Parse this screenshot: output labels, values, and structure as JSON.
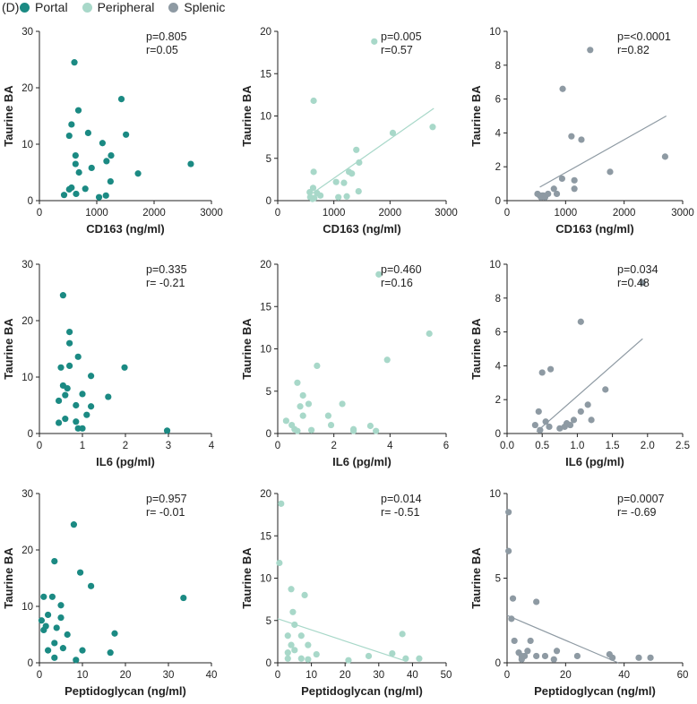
{
  "figure": {
    "panel_label": "(D)"
  },
  "legend": [
    {
      "label": "Portal",
      "color": "#1b8a83"
    },
    {
      "label": "Peripheral",
      "color": "#a8d8c9"
    },
    {
      "label": "Splenic",
      "color": "#8e9aa3"
    }
  ],
  "chart_data": [
    {
      "type": "scatter",
      "series": "Portal",
      "color": "#1b8a83",
      "title": "",
      "xlabel": "CD163 (ng/ml)",
      "ylabel": "Taurine BA",
      "xlim": [
        0,
        3000
      ],
      "ylim": [
        0,
        30
      ],
      "xticks": [
        0,
        1000,
        2000,
        3000
      ],
      "yticks": [
        0,
        10,
        20,
        30
      ],
      "xtick_labels": [
        "0",
        "1000",
        "2000",
        "3000"
      ],
      "ytick_labels": [
        "0",
        "10",
        "20",
        "30"
      ],
      "stats": [
        "p=0.805",
        "r=0.05"
      ],
      "fit": null,
      "points": [
        [
          610,
          24.5
        ],
        [
          1430,
          18
        ],
        [
          680,
          16
        ],
        [
          560,
          13.5
        ],
        [
          850,
          12
        ],
        [
          520,
          11.5
        ],
        [
          1510,
          11.7
        ],
        [
          1100,
          10.2
        ],
        [
          1250,
          8
        ],
        [
          630,
          8
        ],
        [
          1170,
          7
        ],
        [
          630,
          6.5
        ],
        [
          2640,
          6.5
        ],
        [
          910,
          5.8
        ],
        [
          690,
          5
        ],
        [
          1720,
          4.8
        ],
        [
          1240,
          3.4
        ],
        [
          560,
          2.3
        ],
        [
          520,
          2
        ],
        [
          800,
          2.1
        ],
        [
          640,
          1.2
        ],
        [
          1160,
          0.9
        ],
        [
          430,
          1.0
        ],
        [
          1040,
          0.6
        ]
      ]
    },
    {
      "type": "scatter",
      "series": "Peripheral",
      "color": "#a8d8c9",
      "title": "",
      "xlabel": "CD163 (ng/ml)",
      "ylabel": "Taurine BA",
      "xlim": [
        0,
        3000
      ],
      "ylim": [
        0,
        20
      ],
      "xticks": [
        0,
        1000,
        2000,
        3000
      ],
      "yticks": [
        0,
        5,
        10,
        15,
        20
      ],
      "xtick_labels": [
        "0",
        "1000",
        "2000",
        "3000"
      ],
      "ytick_labels": [
        "0",
        "5",
        "10",
        "15",
        "20"
      ],
      "stats": [
        "p=0.005",
        "r=0.57"
      ],
      "fit": {
        "x": [
          560,
          2780
        ],
        "y": [
          0.6,
          10.9
        ]
      },
      "points": [
        [
          1720,
          18.8
        ],
        [
          640,
          11.8
        ],
        [
          2760,
          8.7
        ],
        [
          2050,
          8
        ],
        [
          1400,
          6
        ],
        [
          1450,
          4.5
        ],
        [
          640,
          3.4
        ],
        [
          1270,
          3.4
        ],
        [
          1320,
          3.2
        ],
        [
          1040,
          2.2
        ],
        [
          1180,
          2.1
        ],
        [
          630,
          1.5
        ],
        [
          570,
          1.0
        ],
        [
          700,
          0.9
        ],
        [
          760,
          0.6
        ],
        [
          1440,
          1.1
        ],
        [
          580,
          0.4
        ],
        [
          650,
          0.3
        ],
        [
          1080,
          0.4
        ],
        [
          620,
          0.2
        ],
        [
          1230,
          0.5
        ]
      ]
    },
    {
      "type": "scatter",
      "series": "Splenic",
      "color": "#8e9aa3",
      "title": "",
      "xlabel": "CD163 (ng/ml)",
      "ylabel": "Taurine BA",
      "xlim": [
        0,
        3000
      ],
      "ylim": [
        0,
        10
      ],
      "xticks": [
        0,
        1000,
        2000,
        3000
      ],
      "yticks": [
        0,
        2,
        4,
        6,
        8,
        10
      ],
      "xtick_labels": [
        "0",
        "1000",
        "2000",
        "3000"
      ],
      "ytick_labels": [
        "0",
        "2",
        "4",
        "6",
        "8",
        "10"
      ],
      "stats": [
        "p=<0.0001",
        "r=0.82"
      ],
      "fit": {
        "x": [
          560,
          2720
        ],
        "y": [
          0.8,
          5.0
        ]
      },
      "points": [
        [
          1420,
          8.9
        ],
        [
          950,
          6.6
        ],
        [
          1100,
          3.8
        ],
        [
          1270,
          3.6
        ],
        [
          2700,
          2.6
        ],
        [
          1760,
          1.7
        ],
        [
          1150,
          1.2
        ],
        [
          940,
          1.3
        ],
        [
          520,
          0.4
        ],
        [
          560,
          0.3
        ],
        [
          600,
          0.3
        ],
        [
          620,
          0.3
        ],
        [
          580,
          0.2
        ],
        [
          650,
          0.2
        ],
        [
          700,
          0.4
        ],
        [
          850,
          0.4
        ],
        [
          800,
          0.7
        ],
        [
          1150,
          0.7
        ]
      ]
    },
    {
      "type": "scatter",
      "series": "Portal",
      "color": "#1b8a83",
      "title": "",
      "xlabel": "IL6 (pg/ml)",
      "ylabel": "Taurine BA",
      "xlim": [
        0,
        4
      ],
      "ylim": [
        0,
        30
      ],
      "xticks": [
        0,
        1,
        2,
        3,
        4
      ],
      "yticks": [
        0,
        10,
        20,
        30
      ],
      "xtick_labels": [
        "0",
        "1",
        "2",
        "3",
        "4"
      ],
      "ytick_labels": [
        "0",
        "10",
        "20",
        "30"
      ],
      "stats": [
        "p=0.335",
        "r= -0.21"
      ],
      "fit": null,
      "points": [
        [
          0.55,
          24.5
        ],
        [
          0.7,
          18
        ],
        [
          0.7,
          16
        ],
        [
          0.9,
          13.6
        ],
        [
          0.5,
          11.7
        ],
        [
          0.7,
          12
        ],
        [
          1.98,
          11.7
        ],
        [
          1.2,
          10.2
        ],
        [
          0.55,
          8.5
        ],
        [
          0.65,
          8
        ],
        [
          1.0,
          7
        ],
        [
          0.6,
          6.8
        ],
        [
          1.6,
          6.5
        ],
        [
          0.45,
          5.8
        ],
        [
          0.85,
          5
        ],
        [
          1.2,
          4.8
        ],
        [
          1.1,
          3.3
        ],
        [
          0.6,
          2.6
        ],
        [
          0.45,
          1.9
        ],
        [
          0.85,
          2.1
        ],
        [
          0.9,
          0.9
        ],
        [
          1.0,
          0.9
        ],
        [
          2.97,
          0.5
        ]
      ]
    },
    {
      "type": "scatter",
      "series": "Peripheral",
      "color": "#a8d8c9",
      "title": "",
      "xlabel": "IL6 (pg/ml)",
      "ylabel": "Taurine BA",
      "xlim": [
        0,
        6
      ],
      "ylim": [
        0,
        20
      ],
      "xticks": [
        0,
        2,
        4,
        6
      ],
      "yticks": [
        0,
        5,
        10,
        15,
        20
      ],
      "xtick_labels": [
        "0",
        "2",
        "4",
        "6"
      ],
      "ytick_labels": [
        "0",
        "5",
        "10",
        "15",
        "20"
      ],
      "stats": [
        "p=0.460",
        "r=0.16"
      ],
      "fit": null,
      "points": [
        [
          3.6,
          18.8
        ],
        [
          5.4,
          11.8
        ],
        [
          3.9,
          8.7
        ],
        [
          1.4,
          8
        ],
        [
          0.7,
          6
        ],
        [
          0.9,
          4.5
        ],
        [
          1.1,
          3.5
        ],
        [
          2.3,
          3.5
        ],
        [
          0.8,
          3.2
        ],
        [
          0.3,
          1.5
        ],
        [
          0.9,
          2.1
        ],
        [
          1.8,
          2.1
        ],
        [
          0.5,
          1
        ],
        [
          1.9,
          1
        ],
        [
          0.6,
          0.5
        ],
        [
          3.3,
          0.9
        ],
        [
          1.2,
          0.4
        ],
        [
          0.7,
          0.3
        ],
        [
          2.7,
          0.3
        ],
        [
          3.5,
          0.3
        ],
        [
          2.7,
          0.5
        ]
      ]
    },
    {
      "type": "scatter",
      "series": "Splenic",
      "color": "#8e9aa3",
      "title": "",
      "xlabel": "IL6 (pg/ml)",
      "ylabel": "Taurine BA",
      "xlim": [
        0,
        2.5
      ],
      "ylim": [
        0,
        10
      ],
      "xticks": [
        0,
        0.5,
        1,
        1.5,
        2,
        2.5
      ],
      "yticks": [
        0,
        2,
        4,
        6,
        8,
        10
      ],
      "xtick_labels": [
        "0.0",
        "0.5",
        "1.0",
        "1.5",
        "2.0",
        "2.5"
      ],
      "ytick_labels": [
        "0",
        "2",
        "4",
        "6",
        "8",
        "10"
      ],
      "stats": [
        "p=0.034",
        "r=0.48"
      ],
      "fit": {
        "x": [
          0.42,
          1.93
        ],
        "y": [
          0.1,
          5.6
        ]
      },
      "points": [
        [
          1.93,
          8.9
        ],
        [
          1.05,
          6.6
        ],
        [
          0.62,
          3.8
        ],
        [
          0.5,
          3.6
        ],
        [
          1.4,
          2.6
        ],
        [
          1.15,
          1.7
        ],
        [
          0.45,
          1.3
        ],
        [
          1.05,
          1.3
        ],
        [
          0.95,
          0.8
        ],
        [
          1.2,
          0.8
        ],
        [
          0.55,
          0.7
        ],
        [
          0.85,
          0.6
        ],
        [
          0.4,
          0.5
        ],
        [
          0.6,
          0.4
        ],
        [
          0.82,
          0.4
        ],
        [
          0.9,
          0.5
        ],
        [
          0.47,
          0.2
        ],
        [
          0.75,
          0.3
        ]
      ]
    },
    {
      "type": "scatter",
      "series": "Portal",
      "color": "#1b8a83",
      "title": "",
      "xlabel": "Peptidoglycan (ng/ml)",
      "ylabel": "Taurine BA",
      "xlim": [
        0,
        40
      ],
      "ylim": [
        0,
        30
      ],
      "xticks": [
        0,
        10,
        20,
        30,
        40
      ],
      "yticks": [
        0,
        10,
        20,
        30
      ],
      "xtick_labels": [
        "0",
        "10",
        "20",
        "30",
        "40"
      ],
      "ytick_labels": [
        "0",
        "10",
        "20",
        "30"
      ],
      "stats": [
        "p=0.957",
        "r= -0.01"
      ],
      "fit": null,
      "points": [
        [
          8,
          24.5
        ],
        [
          3.5,
          18
        ],
        [
          9.5,
          16
        ],
        [
          12,
          13.6
        ],
        [
          1,
          11.7
        ],
        [
          3,
          11.7
        ],
        [
          33.5,
          11.5
        ],
        [
          5,
          10.2
        ],
        [
          2,
          8.5
        ],
        [
          5,
          8
        ],
        [
          0.5,
          7.5
        ],
        [
          1.5,
          6.5
        ],
        [
          4,
          6.2
        ],
        [
          1,
          5.8
        ],
        [
          17.5,
          5.2
        ],
        [
          6.5,
          5
        ],
        [
          3.5,
          3.5
        ],
        [
          5.5,
          2.6
        ],
        [
          2,
          2.2
        ],
        [
          10,
          2.2
        ],
        [
          16.5,
          1.8
        ],
        [
          3.5,
          0.9
        ],
        [
          8.5,
          0.5
        ]
      ]
    },
    {
      "type": "scatter",
      "series": "Peripheral",
      "color": "#a8d8c9",
      "title": "",
      "xlabel": "Peptidoglycan (ng/ml)",
      "ylabel": "Taurine BA",
      "xlim": [
        0,
        50
      ],
      "ylim": [
        0,
        20
      ],
      "xticks": [
        0,
        10,
        20,
        30,
        40,
        50
      ],
      "yticks": [
        0,
        5,
        10,
        15,
        20
      ],
      "xtick_labels": [
        "0",
        "10",
        "20",
        "30",
        "40",
        "50"
      ],
      "ytick_labels": [
        "0",
        "5",
        "10",
        "15",
        "20"
      ],
      "stats": [
        "p=0.014",
        "r= -0.51"
      ],
      "fit": {
        "x": [
          0,
          38
        ],
        "y": [
          5.2,
          0.2
        ]
      },
      "points": [
        [
          1,
          18.8
        ],
        [
          0.5,
          11.8
        ],
        [
          4,
          8.7
        ],
        [
          8,
          8
        ],
        [
          4.5,
          6
        ],
        [
          5,
          4.5
        ],
        [
          37,
          3.4
        ],
        [
          3,
          3.2
        ],
        [
          7,
          3.2
        ],
        [
          4,
          2.1
        ],
        [
          9,
          2.1
        ],
        [
          5,
          1.5
        ],
        [
          3,
          1.2
        ],
        [
          34,
          1.1
        ],
        [
          11.5,
          1
        ],
        [
          3,
          0.5
        ],
        [
          7,
          0.5
        ],
        [
          9,
          0.4
        ],
        [
          38,
          0.5
        ],
        [
          42,
          0.5
        ],
        [
          27,
          0.8
        ],
        [
          21,
          0.3
        ]
      ]
    },
    {
      "type": "scatter",
      "series": "Splenic",
      "color": "#8e9aa3",
      "title": "",
      "xlabel": "Peptidoglycan (ng/ml)",
      "ylabel": "Taurine BA",
      "xlim": [
        0,
        60
      ],
      "ylim": [
        0,
        10
      ],
      "xticks": [
        0,
        20,
        40,
        60
      ],
      "yticks": [
        0,
        5,
        10
      ],
      "xtick_labels": [
        "0",
        "20",
        "40",
        "60"
      ],
      "ytick_labels": [
        "0",
        "5",
        "10"
      ],
      "stats": [
        "p=0.0007",
        "r= -0.69"
      ],
      "fit": {
        "x": [
          0,
          38
        ],
        "y": [
          2.8,
          0.0
        ]
      },
      "points": [
        [
          0.5,
          8.9
        ],
        [
          0.5,
          6.6
        ],
        [
          2,
          3.8
        ],
        [
          10,
          3.6
        ],
        [
          1.5,
          2.6
        ],
        [
          2.5,
          1.3
        ],
        [
          8,
          1.3
        ],
        [
          7,
          0.7
        ],
        [
          17,
          0.7
        ],
        [
          4,
          0.6
        ],
        [
          5,
          0.4
        ],
        [
          6,
          0.4
        ],
        [
          10,
          0.4
        ],
        [
          13,
          0.4
        ],
        [
          24,
          0.4
        ],
        [
          35,
          0.5
        ],
        [
          45,
          0.3
        ],
        [
          49,
          0.3
        ],
        [
          36,
          0.3
        ],
        [
          16,
          0.2
        ],
        [
          5,
          0.2
        ]
      ]
    }
  ]
}
